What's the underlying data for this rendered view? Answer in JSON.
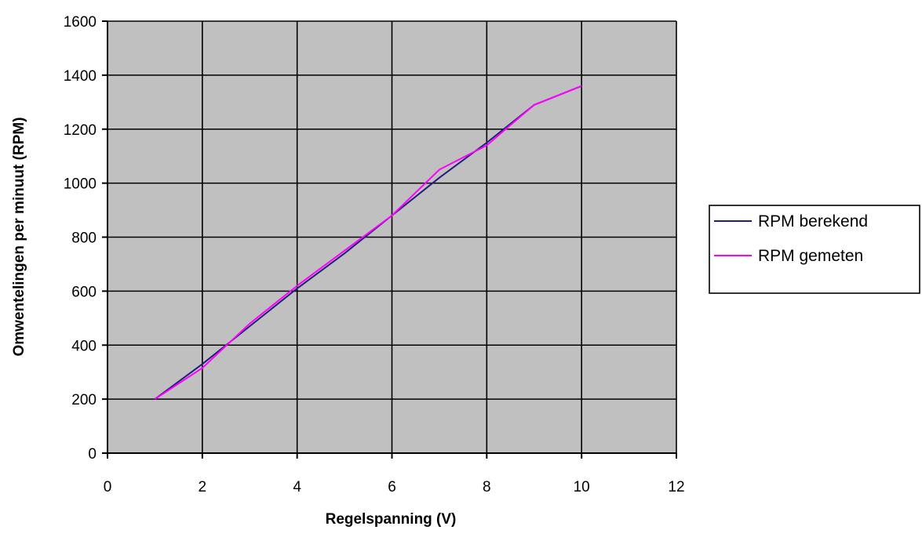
{
  "chart_data": {
    "type": "line",
    "title": "",
    "xlabel": "Regelspanning (V)",
    "ylabel": "Omwentelingen per minuut (RPM)",
    "xlim": [
      0,
      12
    ],
    "ylim": [
      0,
      1600
    ],
    "xticks": [
      "0",
      "2",
      "4",
      "6",
      "8",
      "10",
      "12"
    ],
    "yticks": [
      "0",
      "200",
      "400",
      "600",
      "800",
      "1000",
      "1200",
      "1400",
      "1600"
    ],
    "grid": true,
    "plot_background": "#c0c0c0",
    "legend_position": "right",
    "series": [
      {
        "name": "RPM berekend",
        "color": "#1f1f7a",
        "x": [
          1,
          2,
          3,
          4,
          5,
          6,
          7,
          8,
          9,
          10
        ],
        "y": [
          200,
          330,
          470,
          610,
          740,
          880,
          1020,
          1150,
          1290,
          1360
        ]
      },
      {
        "name": "RPM gemeten",
        "color": "#ff00ff",
        "x": [
          1,
          2,
          3,
          4,
          5,
          6,
          7,
          8,
          9,
          10
        ],
        "y": [
          200,
          315,
          480,
          620,
          750,
          880,
          1050,
          1140,
          1290,
          1360
        ]
      }
    ]
  }
}
